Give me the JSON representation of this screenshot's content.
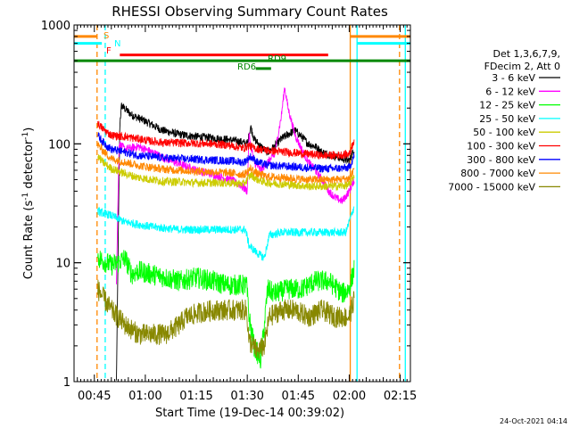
{
  "chart_data": {
    "type": "line",
    "title": "RHESSI Observing Summary Count Rates",
    "xlabel": "Start Time (19-Dec-14 00:39:02)",
    "ylabel_main": "Count Rate (s",
    "ylabel_sup1": "-1",
    "ylabel_mid": " detector",
    "ylabel_sup2": "-1",
    "ylabel_end": ")",
    "y_scale": "log",
    "xlim_min": [
      39.03,
      138
    ],
    "ylim": [
      1,
      1000
    ],
    "x_ticks": [
      {
        "label": "00:45",
        "value": 45
      },
      {
        "label": "01:00",
        "value": 60
      },
      {
        "label": "01:15",
        "value": 75
      },
      {
        "label": "01:30",
        "value": 90
      },
      {
        "label": "01:45",
        "value": 105
      },
      {
        "label": "02:00",
        "value": 120
      },
      {
        "label": "02:15",
        "value": 135
      }
    ],
    "y_ticks": [
      {
        "label": "1",
        "value": 1
      },
      {
        "label": "10",
        "value": 10
      },
      {
        "label": "100",
        "value": 100
      },
      {
        "label": "1000",
        "value": 1000
      }
    ],
    "legend_header": [
      "Det 1,3,6,7,9,",
      "FDecim 2, Att 0"
    ],
    "legend_position": "right",
    "series": [
      {
        "name": "3 - 6 keV",
        "color": "#000000",
        "points": [
          [
            51.5,
            1
          ],
          [
            52.5,
            150
          ],
          [
            53,
            210
          ],
          [
            56,
            175
          ],
          [
            60,
            155
          ],
          [
            65,
            130
          ],
          [
            70,
            120
          ],
          [
            75,
            115
          ],
          [
            80,
            112
          ],
          [
            85,
            108
          ],
          [
            88,
            104
          ],
          [
            90,
            100
          ],
          [
            91,
            140
          ],
          [
            92,
            110
          ],
          [
            94,
            95
          ],
          [
            96,
            85
          ],
          [
            98,
            95
          ],
          [
            100,
            110
          ],
          [
            102,
            120
          ],
          [
            104,
            130
          ],
          [
            106,
            115
          ],
          [
            108,
            100
          ],
          [
            110,
            95
          ],
          [
            112,
            85
          ],
          [
            115,
            80
          ],
          [
            118,
            75
          ],
          [
            120,
            72
          ],
          [
            121.5,
            90
          ]
        ]
      },
      {
        "name": "6 - 12 keV",
        "color": "#ff00ff",
        "points": [
          [
            51.5,
            7
          ],
          [
            52.3,
            100
          ],
          [
            54,
            90
          ],
          [
            58,
            95
          ],
          [
            62,
            85
          ],
          [
            66,
            75
          ],
          [
            70,
            68
          ],
          [
            75,
            60
          ],
          [
            80,
            55
          ],
          [
            85,
            50
          ],
          [
            88,
            45
          ],
          [
            90,
            40
          ],
          [
            90.5,
            120
          ],
          [
            91,
            100
          ],
          [
            92,
            70
          ],
          [
            94,
            60
          ],
          [
            96,
            70
          ],
          [
            98,
            80
          ],
          [
            100,
            170
          ],
          [
            101,
            300
          ],
          [
            102,
            200
          ],
          [
            104,
            120
          ],
          [
            106,
            90
          ],
          [
            108,
            70
          ],
          [
            110,
            60
          ],
          [
            112,
            50
          ],
          [
            114,
            40
          ],
          [
            116,
            35
          ],
          [
            118,
            33
          ],
          [
            120,
            40
          ],
          [
            121.5,
            50
          ]
        ]
      },
      {
        "name": "12 - 25 keV",
        "color": "#00ff00",
        "points": [
          [
            46,
            11
          ],
          [
            50,
            9.5
          ],
          [
            52,
            10
          ],
          [
            54,
            11
          ],
          [
            56,
            8
          ],
          [
            58,
            8.5
          ],
          [
            62,
            8
          ],
          [
            66,
            7.5
          ],
          [
            70,
            7
          ],
          [
            75,
            7.5
          ],
          [
            80,
            7
          ],
          [
            84,
            6.5
          ],
          [
            88,
            6.5
          ],
          [
            89.8,
            6.5
          ],
          [
            90.5,
            3.5
          ],
          [
            92,
            2
          ],
          [
            94,
            1.5
          ],
          [
            96,
            6
          ],
          [
            98,
            5.5
          ],
          [
            102,
            6
          ],
          [
            106,
            6
          ],
          [
            110,
            7
          ],
          [
            114,
            7
          ],
          [
            118,
            5.5
          ],
          [
            120,
            6
          ],
          [
            121.5,
            9
          ]
        ]
      },
      {
        "name": "25 - 50 keV",
        "color": "#00ffff",
        "points": [
          [
            46,
            27
          ],
          [
            50,
            25
          ],
          [
            54,
            22
          ],
          [
            58,
            21
          ],
          [
            62,
            20
          ],
          [
            66,
            19.5
          ],
          [
            70,
            19
          ],
          [
            75,
            19
          ],
          [
            80,
            19
          ],
          [
            85,
            19
          ],
          [
            89.5,
            19
          ],
          [
            90.5,
            14
          ],
          [
            93,
            12
          ],
          [
            95,
            11
          ],
          [
            96.5,
            17
          ],
          [
            100,
            18
          ],
          [
            105,
            18
          ],
          [
            110,
            18
          ],
          [
            115,
            18
          ],
          [
            119,
            18
          ],
          [
            121.5,
            30
          ]
        ]
      },
      {
        "name": "50 - 100 keV",
        "color": "#cccc00",
        "points": [
          [
            46,
            78
          ],
          [
            48,
            68
          ],
          [
            50,
            62
          ],
          [
            54,
            56
          ],
          [
            58,
            52
          ],
          [
            62,
            50
          ],
          [
            66,
            48
          ],
          [
            70,
            48
          ],
          [
            75,
            47
          ],
          [
            80,
            47
          ],
          [
            85,
            47
          ],
          [
            89,
            46
          ],
          [
            91,
            55
          ],
          [
            93,
            50
          ],
          [
            96,
            47
          ],
          [
            100,
            46
          ],
          [
            104,
            45
          ],
          [
            108,
            44
          ],
          [
            112,
            44
          ],
          [
            116,
            44
          ],
          [
            120,
            45
          ],
          [
            121.5,
            55
          ]
        ]
      },
      {
        "name": "100 - 300 keV",
        "color": "#ff0000",
        "points": [
          [
            46,
            148
          ],
          [
            48,
            130
          ],
          [
            50,
            118
          ],
          [
            54,
            115
          ],
          [
            58,
            110
          ],
          [
            62,
            105
          ],
          [
            66,
            102
          ],
          [
            70,
            102
          ],
          [
            75,
            101
          ],
          [
            80,
            100
          ],
          [
            85,
            97
          ],
          [
            89,
            92
          ],
          [
            90.5,
            97
          ],
          [
            92,
            92
          ],
          [
            96,
            88
          ],
          [
            100,
            86
          ],
          [
            104,
            84
          ],
          [
            108,
            82
          ],
          [
            112,
            80
          ],
          [
            116,
            80
          ],
          [
            120,
            82
          ],
          [
            121.5,
            110
          ]
        ]
      },
      {
        "name": "300 - 800 keV",
        "color": "#0000ff",
        "points": [
          [
            46,
            118
          ],
          [
            48,
            100
          ],
          [
            50,
            90
          ],
          [
            54,
            85
          ],
          [
            58,
            80
          ],
          [
            62,
            78
          ],
          [
            66,
            76
          ],
          [
            70,
            75
          ],
          [
            75,
            74
          ],
          [
            80,
            73
          ],
          [
            85,
            72
          ],
          [
            89,
            70
          ],
          [
            91,
            78
          ],
          [
            93,
            70
          ],
          [
            96,
            66
          ],
          [
            100,
            65
          ],
          [
            104,
            64
          ],
          [
            108,
            63
          ],
          [
            112,
            62
          ],
          [
            116,
            62
          ],
          [
            120,
            63
          ],
          [
            121.5,
            80
          ]
        ]
      },
      {
        "name": "800 - 7000 keV",
        "color": "#ff8800",
        "points": [
          [
            46,
            98
          ],
          [
            48,
            85
          ],
          [
            50,
            75
          ],
          [
            54,
            70
          ],
          [
            58,
            66
          ],
          [
            62,
            63
          ],
          [
            66,
            61
          ],
          [
            70,
            60
          ],
          [
            75,
            59
          ],
          [
            80,
            58
          ],
          [
            85,
            57
          ],
          [
            89,
            55
          ],
          [
            91,
            62
          ],
          [
            93,
            56
          ],
          [
            96,
            53
          ],
          [
            100,
            52
          ],
          [
            104,
            51
          ],
          [
            108,
            50
          ],
          [
            112,
            50
          ],
          [
            116,
            50
          ],
          [
            120,
            51
          ],
          [
            121.5,
            62
          ]
        ]
      },
      {
        "name": "7000 - 15000 keV",
        "color": "#888800",
        "points": [
          [
            46,
            6
          ],
          [
            50,
            4
          ],
          [
            54,
            3
          ],
          [
            58,
            2.5
          ],
          [
            62,
            2.5
          ],
          [
            66,
            2.5
          ],
          [
            70,
            3
          ],
          [
            72,
            3.5
          ],
          [
            76,
            3.8
          ],
          [
            80,
            4
          ],
          [
            84,
            4
          ],
          [
            88,
            4
          ],
          [
            89.8,
            4
          ],
          [
            90.5,
            2.2
          ],
          [
            93,
            1.8
          ],
          [
            95,
            2
          ],
          [
            96.5,
            3.5
          ],
          [
            100,
            4
          ],
          [
            104,
            4
          ],
          [
            108,
            3.5
          ],
          [
            112,
            4
          ],
          [
            116,
            3.5
          ],
          [
            120,
            3.5
          ],
          [
            121.5,
            5
          ]
        ]
      }
    ],
    "flags": [
      {
        "name": "S",
        "color": "#ff8800",
        "level": 800,
        "segments": [
          [
            39.03,
            45.8
          ],
          [
            120.3,
            138
          ]
        ]
      },
      {
        "name": "N",
        "color": "#00ffff",
        "level": 700,
        "segments": [
          [
            39.03,
            47.2
          ],
          [
            122.3,
            138
          ]
        ]
      },
      {
        "name": "F",
        "color": "#ff0000",
        "level": 560,
        "segments": [
          [
            52.5,
            113.8
          ]
        ]
      },
      {
        "name": "",
        "color": "#008800",
        "level": 500,
        "segments": [
          [
            39.03,
            138
          ]
        ]
      },
      {
        "name": "RD9",
        "color": "#008800",
        "level": 500,
        "segments": []
      },
      {
        "name": "RD6",
        "color": "#008800",
        "level": 430,
        "segments": [
          [
            92.5,
            97
          ]
        ]
      }
    ],
    "vlines": [
      {
        "x": 45.8,
        "color": "#ff8800",
        "style": "dashed"
      },
      {
        "x": 48.2,
        "color": "#00ffff",
        "style": "dashed"
      },
      {
        "x": 134.8,
        "color": "#ff8800",
        "style": "dashed"
      },
      {
        "x": 120.3,
        "color": "#ff8800",
        "style": "solid"
      },
      {
        "x": 122.3,
        "color": "#00ffff",
        "style": "solid"
      },
      {
        "x": 136.5,
        "color": "#00ffff",
        "style": "solid"
      }
    ]
  },
  "footer": {
    "timestamp": "24-Oct-2021 04:14"
  }
}
